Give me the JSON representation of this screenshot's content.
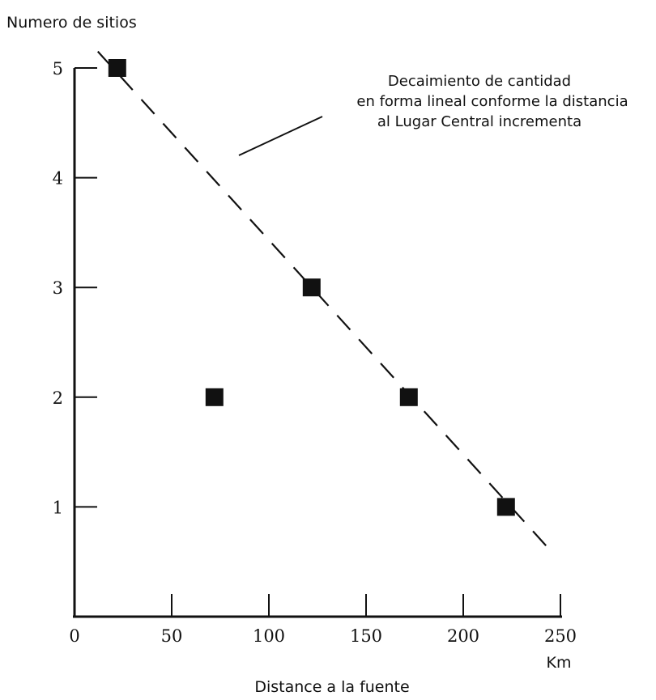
{
  "chart_data": {
    "type": "scatter",
    "title": "",
    "ylabel": "Numero de sitios",
    "xlabel": "Distance a la fuente",
    "x_unit": "Km",
    "xlim": [
      0,
      250
    ],
    "ylim": [
      0,
      5
    ],
    "x_ticks": [
      0,
      50,
      100,
      150,
      200,
      250
    ],
    "y_ticks": [
      1,
      2,
      3,
      4,
      5
    ],
    "grid": false,
    "points": [
      {
        "x": 22,
        "y": 5
      },
      {
        "x": 72,
        "y": 2
      },
      {
        "x": 122,
        "y": 3
      },
      {
        "x": 172,
        "y": 2
      },
      {
        "x": 222,
        "y": 1
      }
    ],
    "trend_line": {
      "style": "dashed",
      "x": [
        12,
        245
      ],
      "y": [
        5.15,
        0.6
      ]
    },
    "annotation": {
      "lines": [
        "Decaimiento de cantidad",
        "en forma lineal conforme la distancia",
        "al Lugar Central incrementa"
      ]
    },
    "colors": {
      "ink": "#111111",
      "background": "#ffffff"
    }
  }
}
